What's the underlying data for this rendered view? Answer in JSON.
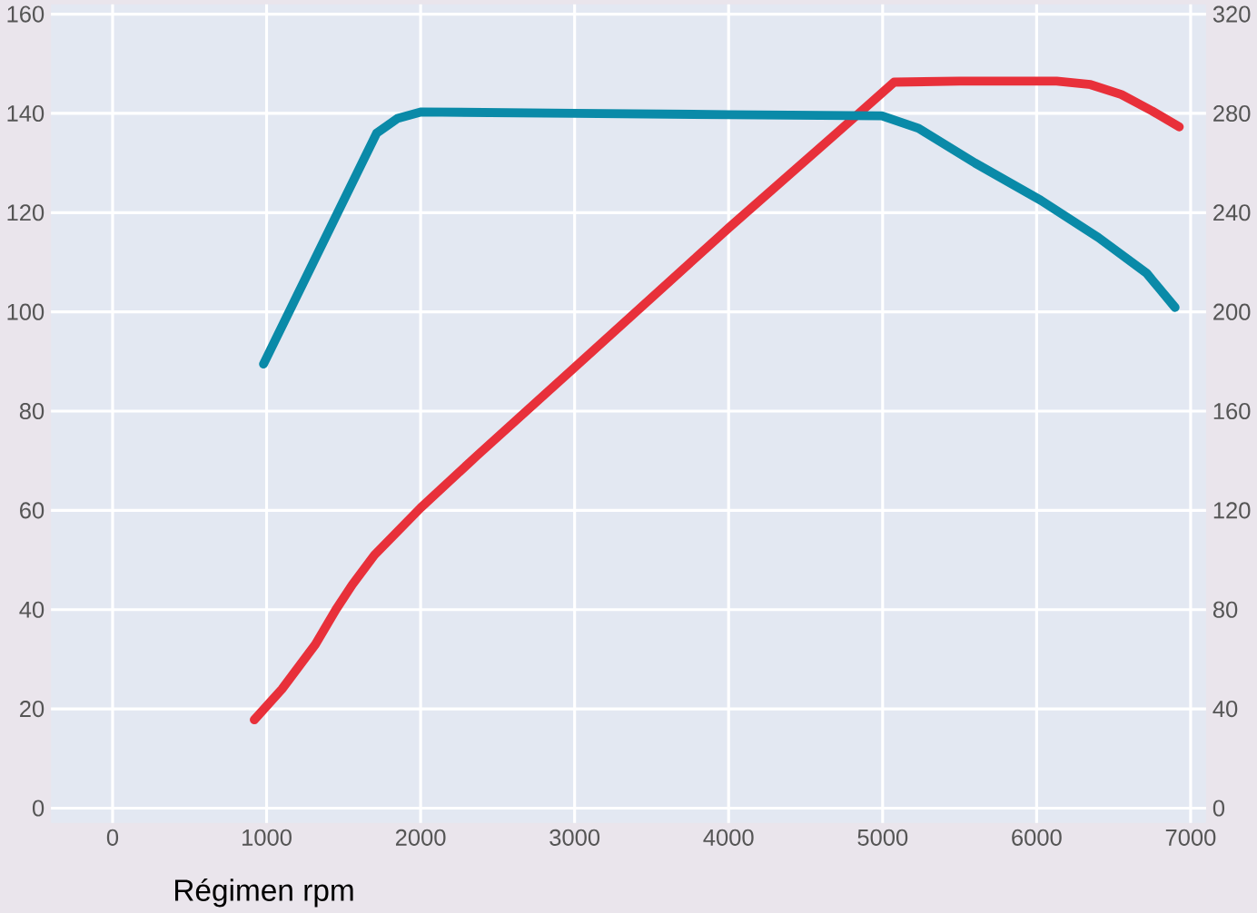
{
  "chart_data": {
    "type": "line",
    "xlabel": "Régimen rpm",
    "xlim": [
      -400,
      7100
    ],
    "xticks": [
      0,
      1000,
      2000,
      3000,
      4000,
      5000,
      6000,
      7000
    ],
    "ylim": [
      -3,
      162
    ],
    "yticks": [
      0,
      20,
      40,
      60,
      80,
      100,
      120,
      140,
      160
    ],
    "y2lim": [
      -6,
      324
    ],
    "y2ticks": [
      0,
      40,
      80,
      120,
      160,
      200,
      240,
      280,
      320
    ],
    "grid": true,
    "marker": "none",
    "line_style": "solid",
    "series": [
      {
        "color": "#0a8aa8",
        "axis": "y2",
        "x": [
          980,
          1714,
          1850,
          2005,
          3000,
          4000,
          4995,
          5233,
          5600,
          6026,
          6400,
          6714,
          6899
        ],
        "values": [
          179,
          272,
          278,
          280.6,
          280,
          279.5,
          279,
          274,
          260,
          245,
          230,
          215.6,
          201.8
        ]
      },
      {
        "color": "#e8303a",
        "axis": "y",
        "x": [
          920,
          1100,
          1317,
          1450,
          1556,
          1700,
          2000,
          2365,
          3000,
          4000,
          4700,
          5075,
          5500,
          6130,
          6350,
          6550,
          6750,
          6926
        ],
        "values": [
          17.8,
          24,
          33,
          40,
          45,
          51,
          60.5,
          71,
          88.8,
          116.9,
          136,
          146.3,
          146.5,
          146.5,
          145.8,
          143.8,
          140.5,
          137.3
        ]
      }
    ]
  }
}
